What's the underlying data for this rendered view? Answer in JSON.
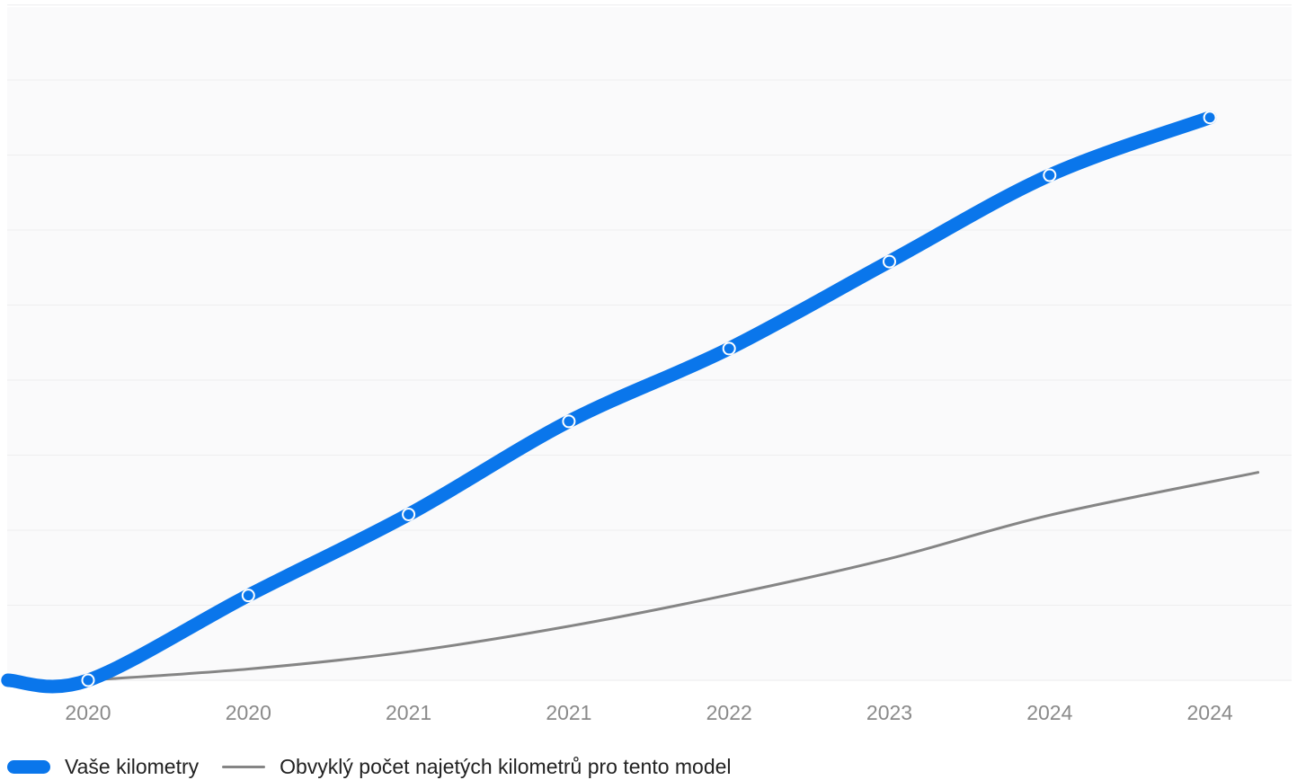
{
  "colors": {
    "series_primary": "#0a76eb",
    "series_typical": "#858585",
    "plot_background": "#fafafb",
    "grid": "#eeeeef",
    "tick_text": "#8a8a8a"
  },
  "chart_data": {
    "type": "line",
    "title": "",
    "xlabel": "",
    "ylabel": "",
    "categories": [
      "2020",
      "2020",
      "2021",
      "2021",
      "2022",
      "2023",
      "2024",
      "2024"
    ],
    "ylim": [
      0,
      9
    ],
    "y_ticks_labeled": false,
    "grid": "horizontal",
    "legend": "bottom-left",
    "series": [
      {
        "name": "Vaše kilometry",
        "x": [
          -0.5,
          0,
          1,
          2,
          3,
          4,
          5,
          6,
          7
        ],
        "values": [
          0,
          0,
          1.13,
          2.21,
          3.45,
          4.42,
          5.58,
          6.73,
          7.5
        ],
        "markers": true
      },
      {
        "name": "Obvyklý počet najetých kilometrů pro tento model",
        "x": [
          0,
          1,
          2,
          3,
          4,
          5,
          6,
          7.3
        ],
        "values": [
          0,
          0.15,
          0.38,
          0.72,
          1.14,
          1.62,
          2.2,
          2.77
        ],
        "markers": false
      }
    ]
  }
}
